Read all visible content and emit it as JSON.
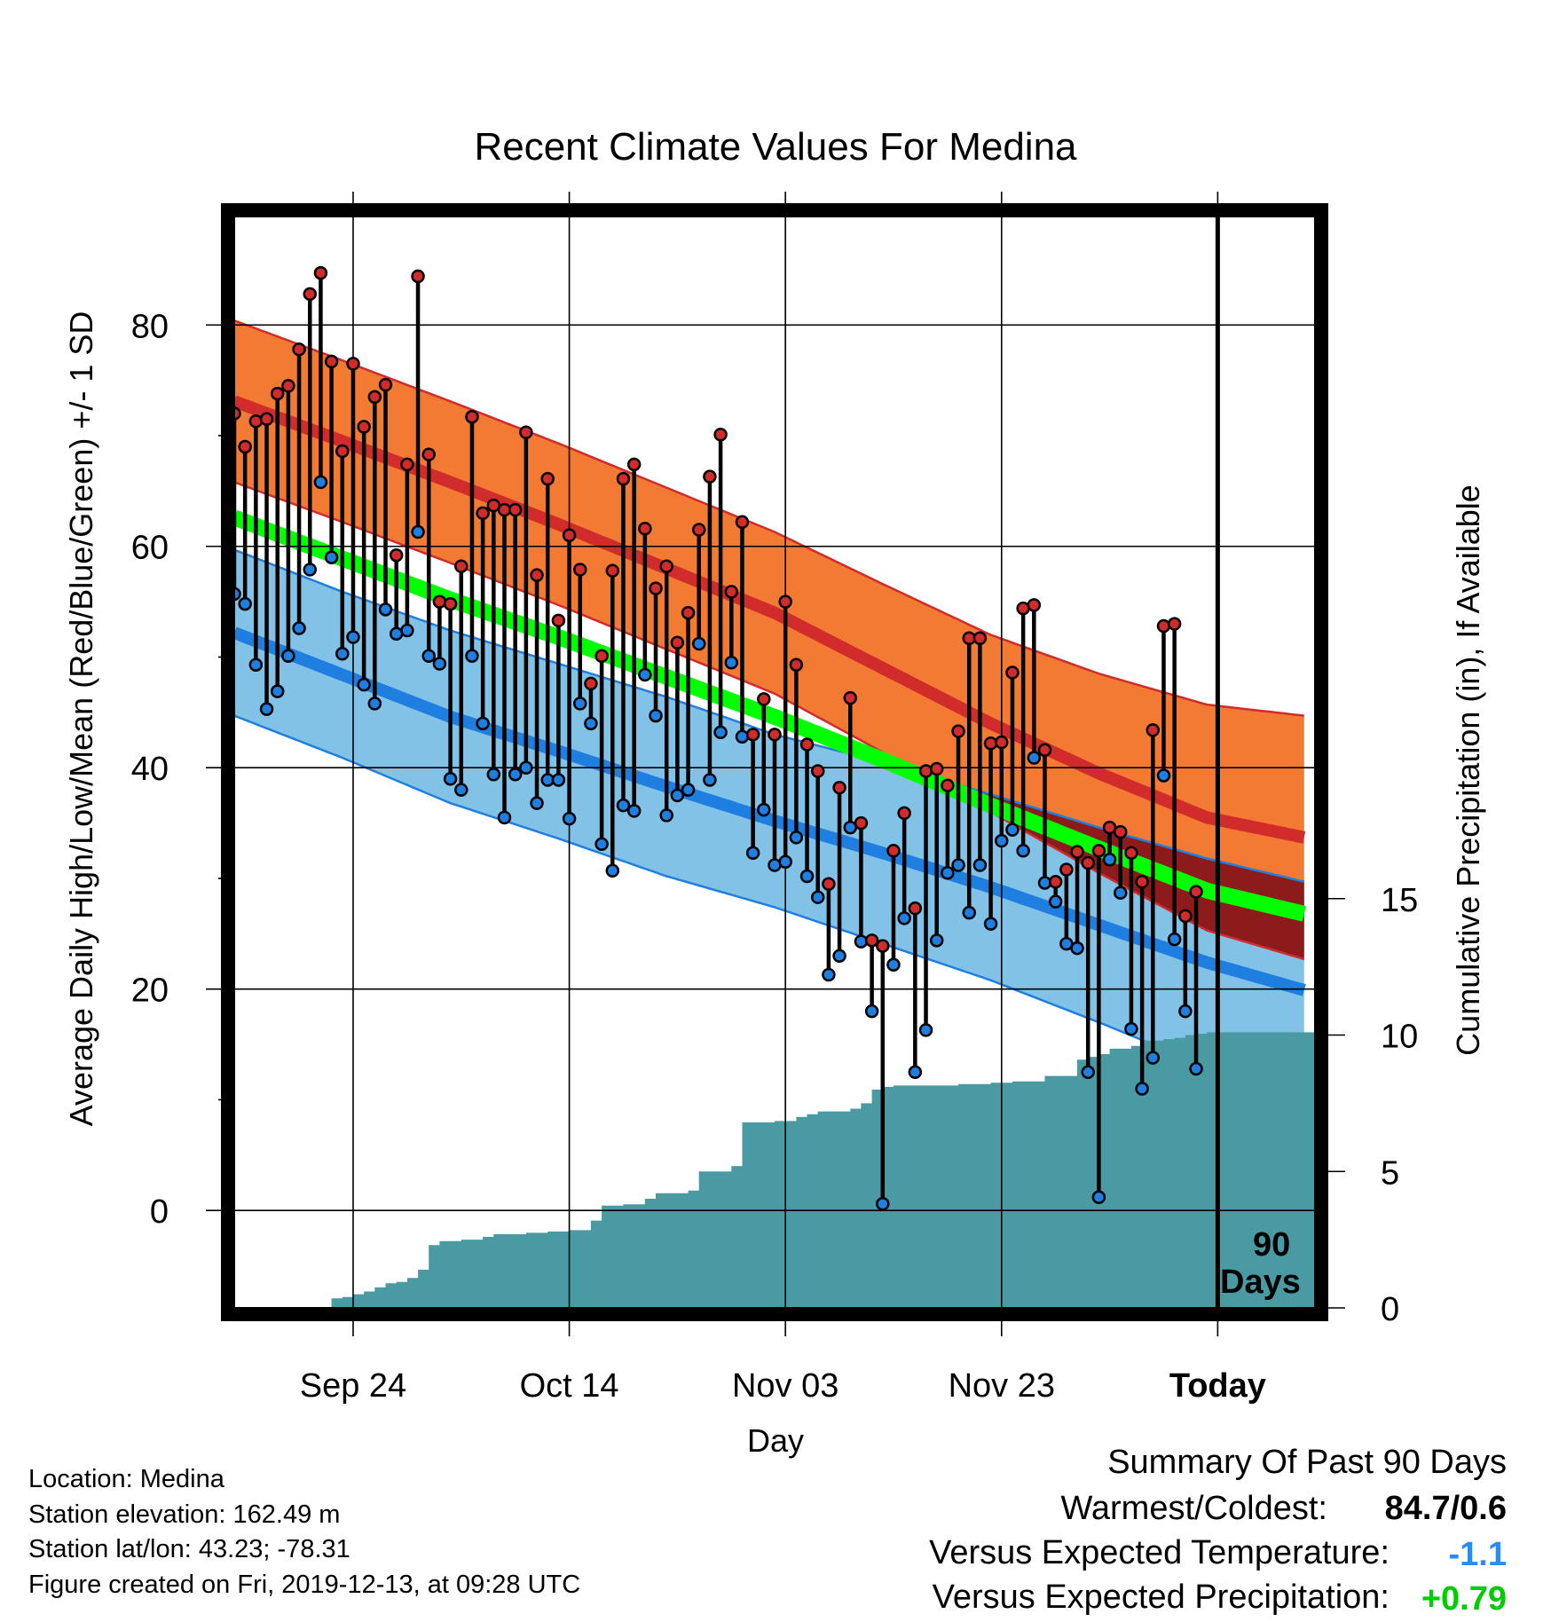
{
  "chart_data": {
    "type": "line",
    "title": "Recent Climate Values For Medina",
    "xlabel": "Day",
    "ylabel": "Average Daily High/Low/Mean (Red/Blue/Green) +/- 1 SD",
    "y2label": "Cumulative Precipitation (in), If Available",
    "x_ticks": [
      {
        "day": 11,
        "label": "Sep 24"
      },
      {
        "day": 31,
        "label": "Oct 14"
      },
      {
        "day": 51,
        "label": "Nov 03"
      },
      {
        "day": 71,
        "label": "Nov 23"
      },
      {
        "day": 91,
        "label": "Today"
      }
    ],
    "xlim": [
      0,
      100
    ],
    "today_day": 91,
    "today_annotation": [
      "90",
      "Days"
    ],
    "y_ticks": [
      0,
      20,
      40,
      60,
      80
    ],
    "ylim": [
      -8.8,
      89.8
    ],
    "y2_ticks": [
      0,
      5,
      10,
      15
    ],
    "y2lim": [
      0,
      40
    ],
    "grid": true,
    "colors": {
      "high": "#d22b2b",
      "high_band": "#f27a33",
      "low": "#1f7fe0",
      "low_band": "#82c2e6",
      "mean": "#00ff00",
      "below_normal_high": "#8e1b1b",
      "precip": "#4a9aa3",
      "temp_departure": "#2b8cf0",
      "precip_departure": "#00cc00"
    },
    "normals": {
      "days": [
        0,
        10,
        20,
        30,
        40,
        50,
        60,
        70,
        80,
        90,
        99
      ],
      "high_mean": [
        73.1,
        69.5,
        65.8,
        62.0,
        58.0,
        54.0,
        49.0,
        44.0,
        39.5,
        35.5,
        33.7
      ],
      "high_sd": [
        7.3,
        7.3,
        7.3,
        7.3,
        7.3,
        7.3,
        7.6,
        8.0,
        9.0,
        10.2,
        11.0
      ],
      "low_mean": [
        52.2,
        48.4,
        44.6,
        41.5,
        38.3,
        35.2,
        32.3,
        29.2,
        25.8,
        22.4,
        19.9
      ],
      "low_sd": [
        7.5,
        7.5,
        7.8,
        7.9,
        8.1,
        7.8,
        8.2,
        8.4,
        8.8,
        9.4,
        9.8
      ],
      "mean_mean": [
        62.6,
        58.9,
        55.2,
        51.8,
        48.2,
        44.6,
        40.7,
        36.6,
        32.7,
        28.9,
        26.8
      ]
    },
    "series": [
      {
        "name": "High",
        "values": [
          72.0,
          69.0,
          71.3,
          71.5,
          73.8,
          74.5,
          77.8,
          82.8,
          84.7,
          76.7,
          68.6,
          76.5,
          70.8,
          73.5,
          74.6,
          59.2,
          67.4,
          84.4,
          68.3,
          55.0,
          54.8,
          58.2,
          71.7,
          63.0,
          63.7,
          63.3,
          63.3,
          70.3,
          57.4,
          66.1,
          53.3,
          61.0,
          57.9,
          47.6,
          50.1,
          57.8,
          66.1,
          67.4,
          61.6,
          56.2,
          58.2,
          51.3,
          54.0,
          61.5,
          66.3,
          70.1,
          55.9,
          62.2,
          43.0,
          46.2,
          43.0,
          55.0,
          49.3,
          42.1,
          39.7,
          29.5,
          38.2,
          46.3,
          35.0,
          24.4,
          23.9,
          32.5,
          35.9,
          27.3,
          39.7,
          39.9,
          38.4,
          43.3,
          51.7,
          51.7,
          42.2,
          42.3,
          48.6,
          54.4,
          54.7,
          41.6,
          29.7,
          30.8,
          32.4,
          31.4,
          32.5,
          34.6,
          34.2,
          32.3,
          29.7,
          43.4,
          52.8,
          53.0,
          26.6,
          28.8
        ],
        "lows": [
          55.7,
          54.8,
          49.3,
          45.3,
          46.9,
          50.1,
          52.6,
          57.9,
          65.8,
          59.0,
          50.3,
          51.8,
          47.5,
          45.8,
          54.3,
          52.1,
          52.4,
          61.3,
          50.1,
          49.4,
          39.0,
          38.0,
          50.1,
          44.0,
          39.4,
          35.5,
          39.4,
          40.0,
          36.8,
          38.9,
          38.9,
          35.4,
          45.8,
          44.0,
          33.1,
          30.7,
          36.6,
          36.1,
          48.4,
          44.7,
          35.7,
          37.5,
          38.0,
          51.2,
          38.9,
          43.2,
          49.5,
          42.8,
          32.3,
          36.2,
          31.2,
          31.5,
          33.7,
          30.2,
          28.3,
          21.3,
          23.0,
          34.6,
          24.3,
          18.0,
          0.6,
          22.2,
          26.4,
          12.5,
          16.3,
          24.4,
          30.5,
          31.2,
          26.9,
          31.2,
          25.9,
          33.4,
          34.4,
          32.5,
          40.9,
          29.6,
          27.9,
          24.1,
          23.7,
          12.5,
          1.2,
          31.7,
          28.7,
          16.4,
          11.0,
          13.8,
          39.3,
          24.5,
          18.0,
          12.8
        ]
      }
    ],
    "precip_cumulative": [
      0,
      0,
      0,
      0,
      0,
      0,
      0,
      0,
      0,
      0.35,
      0.4,
      0.5,
      0.6,
      0.75,
      0.9,
      0.95,
      1.1,
      1.4,
      2.3,
      2.45,
      2.45,
      2.5,
      2.5,
      2.6,
      2.7,
      2.7,
      2.7,
      2.75,
      2.75,
      2.8,
      2.8,
      2.85,
      2.85,
      3.2,
      3.75,
      3.75,
      3.8,
      3.8,
      4.0,
      4.2,
      4.2,
      4.2,
      4.3,
      5.0,
      5.0,
      5.0,
      5.2,
      6.8,
      6.8,
      6.8,
      6.85,
      6.85,
      7.0,
      7.1,
      7.2,
      7.2,
      7.2,
      7.3,
      7.5,
      8.0,
      8.1,
      8.15,
      8.15,
      8.15,
      8.15,
      8.15,
      8.15,
      8.2,
      8.2,
      8.2,
      8.25,
      8.25,
      8.3,
      8.3,
      8.3,
      8.5,
      8.5,
      8.5,
      9.1,
      9.2,
      9.3,
      9.5,
      9.5,
      9.6,
      9.8,
      9.8,
      9.85,
      9.9,
      10.0,
      10.05,
      10.1,
      10.1,
      10.1,
      10.1,
      10.1,
      10.1,
      10.1,
      10.1,
      10.1,
      10.1,
      10.1
    ]
  },
  "info": {
    "location": "Location: Medina",
    "elevation": "Station elevation: 162.49 m",
    "latlon": "Station lat/lon: 43.23; -78.31",
    "created": "Figure created on Fri, 2019-12-13, at 09:28 UTC"
  },
  "summary": {
    "title": "Summary Of Past 90 Days",
    "warmest_label": "Warmest/Coldest:",
    "warmest_value": "84.7/0.6",
    "temp_label": "Versus Expected Temperature:",
    "temp_value": "-1.1",
    "precip_label": "Versus Expected Precipitation:",
    "precip_value": "+0.79"
  }
}
